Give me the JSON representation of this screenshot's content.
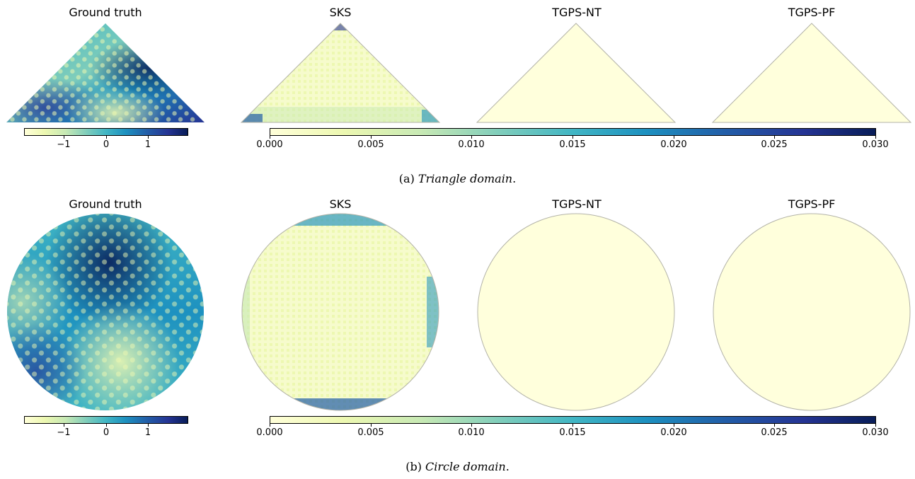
{
  "colors": {
    "ylgnbu": [
      "#ffffd9",
      "#edf8b1",
      "#c7e9b4",
      "#7fcdbb",
      "#41b6c4",
      "#1d91c0",
      "#225ea8",
      "#253494",
      "#081d58"
    ],
    "error_fill": "#ffffdc",
    "outline": "#b3b3a8"
  },
  "panels": {
    "a": {
      "titles": {
        "gt": "Ground truth",
        "sks": "SKS",
        "nt": "TGPS-NT",
        "pf": "TGPS-PF"
      },
      "caption_label": "(a)",
      "caption_text": "Triangle domain",
      "caption_period": "."
    },
    "b": {
      "titles": {
        "gt": "Ground truth",
        "sks": "SKS",
        "nt": "TGPS-NT",
        "pf": "TGPS-PF"
      },
      "caption_label": "(b)",
      "caption_text": "Circle domain",
      "caption_period": "."
    }
  },
  "colorbars": {
    "gt_ticks": [
      "−1",
      "0",
      "1"
    ],
    "err_ticks": [
      "0.000",
      "0.005",
      "0.010",
      "0.015",
      "0.020",
      "0.025",
      "0.030"
    ]
  }
}
